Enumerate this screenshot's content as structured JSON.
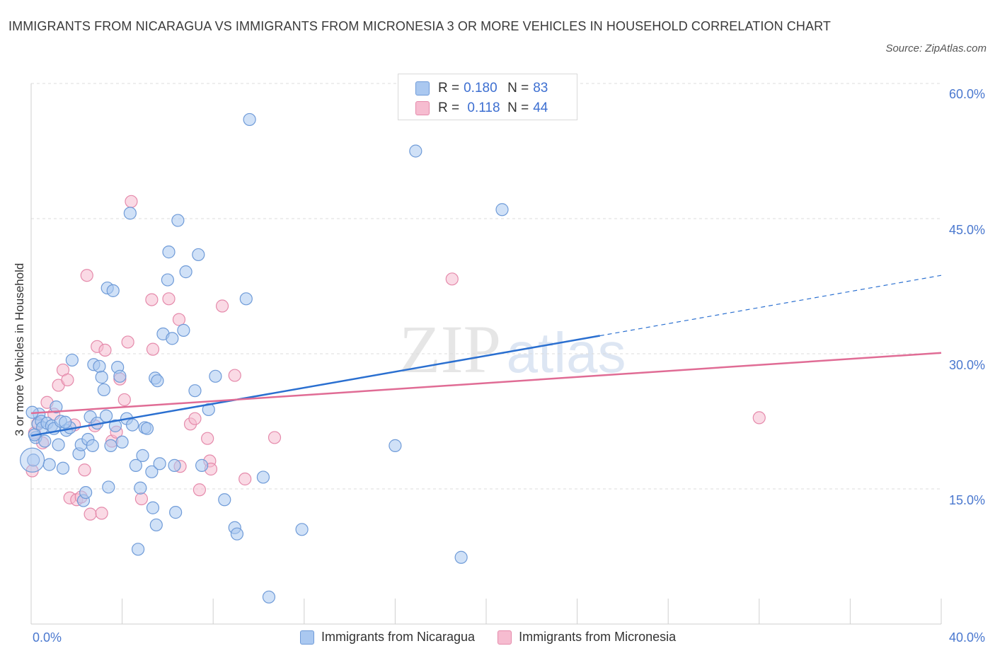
{
  "title": "IMMIGRANTS FROM NICARAGUA VS IMMIGRANTS FROM MICRONESIA 3 OR MORE VEHICLES IN HOUSEHOLD CORRELATION CHART",
  "source": "Source: ZipAtlas.com",
  "watermark": {
    "zip": "ZIP",
    "atlas": "atlas"
  },
  "colors": {
    "blue_fill": "#aac8f0",
    "blue_stroke": "#6f9bd8",
    "blue_line": "#2a6fd0",
    "pink_fill": "#f6bcd0",
    "pink_stroke": "#e58aab",
    "pink_line": "#e06c95",
    "tick_text": "#4a78cf",
    "grid": "#dcdcdc"
  },
  "legend_top": {
    "rows": [
      {
        "r_key": "R = ",
        "r_val": "0.180",
        "n_key": "N = ",
        "n_val": "83"
      },
      {
        "r_key": "R = ",
        "r_val": " 0.118",
        "n_key": "N = ",
        "n_val": "44"
      }
    ]
  },
  "legend_bottom": [
    "Immigrants from Nicaragua",
    "Immigrants from Micronesia"
  ],
  "axis": {
    "ylabel": "3 or more Vehicles in Household",
    "x_left_label": "0.0%",
    "x_right_label": "40.0%",
    "y_ticks": [
      "15.0%",
      "30.0%",
      "45.0%",
      "60.0%"
    ]
  },
  "chart_data": {
    "type": "scatter",
    "title": "IMMIGRANTS FROM NICARAGUA VS IMMIGRANTS FROM MICRONESIA 3 OR MORE VEHICLES IN HOUSEHOLD CORRELATION CHART",
    "xlabel": "",
    "ylabel": "3 or more Vehicles in Household",
    "xlim": [
      0,
      40
    ],
    "ylim": [
      0,
      60
    ],
    "y_ticks": [
      15,
      30,
      45,
      60
    ],
    "grid": true,
    "legend": "top-center",
    "series": [
      {
        "name": "Immigrants from Nicaragua",
        "R": 0.18,
        "N": 83,
        "trend": {
          "x": [
            0,
            25
          ],
          "y": [
            20.9,
            32.0
          ],
          "dashed_to": {
            "x": 40,
            "y": 38.7
          }
        },
        "points": [
          [
            0.1,
            18.2
          ],
          [
            0.2,
            20.7
          ],
          [
            0.3,
            22.2
          ],
          [
            0.35,
            23.3
          ],
          [
            0.45,
            22.5
          ],
          [
            0.5,
            21.8
          ],
          [
            0.6,
            20.3
          ],
          [
            0.7,
            22.3
          ],
          [
            0.8,
            17.7
          ],
          [
            0.9,
            22.0
          ],
          [
            1.0,
            21.7
          ],
          [
            1.1,
            24.1
          ],
          [
            1.2,
            19.9
          ],
          [
            1.3,
            22.5
          ],
          [
            1.4,
            17.3
          ],
          [
            1.55,
            21.5
          ],
          [
            1.7,
            21.8
          ],
          [
            1.8,
            29.3
          ],
          [
            2.1,
            18.9
          ],
          [
            2.2,
            19.9
          ],
          [
            2.3,
            13.7
          ],
          [
            2.4,
            14.6
          ],
          [
            2.5,
            20.5
          ],
          [
            2.6,
            23.0
          ],
          [
            2.7,
            19.8
          ],
          [
            2.75,
            28.8
          ],
          [
            2.9,
            22.3
          ],
          [
            3.0,
            28.6
          ],
          [
            3.1,
            27.4
          ],
          [
            3.2,
            26.0
          ],
          [
            3.3,
            23.1
          ],
          [
            3.35,
            37.3
          ],
          [
            3.4,
            15.2
          ],
          [
            3.5,
            19.8
          ],
          [
            3.6,
            37.0
          ],
          [
            3.7,
            22.0
          ],
          [
            3.8,
            28.5
          ],
          [
            3.9,
            27.5
          ],
          [
            4.0,
            20.2
          ],
          [
            4.2,
            22.8
          ],
          [
            4.35,
            45.6
          ],
          [
            4.45,
            22.1
          ],
          [
            4.6,
            17.6
          ],
          [
            4.7,
            8.3
          ],
          [
            4.8,
            15.1
          ],
          [
            4.9,
            18.7
          ],
          [
            5.0,
            21.8
          ],
          [
            5.1,
            21.7
          ],
          [
            5.3,
            16.9
          ],
          [
            5.35,
            12.9
          ],
          [
            5.45,
            27.3
          ],
          [
            5.5,
            11.0
          ],
          [
            5.55,
            27.0
          ],
          [
            5.65,
            17.8
          ],
          [
            5.8,
            32.2
          ],
          [
            6.0,
            38.2
          ],
          [
            6.05,
            41.3
          ],
          [
            6.2,
            31.7
          ],
          [
            6.3,
            17.6
          ],
          [
            6.35,
            12.4
          ],
          [
            6.45,
            44.8
          ],
          [
            6.7,
            32.6
          ],
          [
            6.8,
            39.1
          ],
          [
            7.2,
            25.9
          ],
          [
            7.35,
            41.0
          ],
          [
            7.5,
            17.6
          ],
          [
            7.8,
            23.8
          ],
          [
            8.1,
            27.5
          ],
          [
            8.5,
            13.8
          ],
          [
            8.95,
            10.7
          ],
          [
            9.05,
            10.0
          ],
          [
            9.45,
            36.1
          ],
          [
            9.6,
            56.0
          ],
          [
            10.2,
            16.3
          ],
          [
            10.45,
            3.0
          ],
          [
            11.9,
            10.5
          ],
          [
            16.0,
            19.8
          ],
          [
            16.9,
            52.5
          ],
          [
            18.9,
            7.4
          ],
          [
            20.7,
            46.0
          ],
          [
            0.05,
            23.5
          ],
          [
            0.15,
            21.0
          ],
          [
            1.5,
            22.4
          ]
        ]
      },
      {
        "name": "Immigrants from Micronesia",
        "R": 0.118,
        "N": 44,
        "trend": {
          "x": [
            0,
            40
          ],
          "y": [
            23.4,
            30.1
          ]
        },
        "points": [
          [
            0.05,
            17.0
          ],
          [
            0.15,
            21.2
          ],
          [
            0.3,
            22.3
          ],
          [
            0.5,
            20.1
          ],
          [
            0.7,
            24.6
          ],
          [
            1.0,
            23.3
          ],
          [
            1.2,
            26.5
          ],
          [
            1.4,
            28.2
          ],
          [
            1.6,
            27.1
          ],
          [
            1.7,
            14.0
          ],
          [
            1.9,
            22.1
          ],
          [
            2.0,
            13.8
          ],
          [
            2.2,
            14.1
          ],
          [
            2.35,
            17.1
          ],
          [
            2.45,
            38.7
          ],
          [
            2.6,
            12.2
          ],
          [
            2.8,
            22.0
          ],
          [
            2.9,
            30.8
          ],
          [
            3.1,
            12.3
          ],
          [
            3.25,
            30.4
          ],
          [
            3.55,
            20.3
          ],
          [
            3.75,
            21.3
          ],
          [
            3.9,
            27.2
          ],
          [
            4.1,
            24.9
          ],
          [
            4.25,
            31.3
          ],
          [
            4.4,
            46.9
          ],
          [
            4.85,
            13.9
          ],
          [
            5.3,
            36.0
          ],
          [
            5.35,
            30.5
          ],
          [
            6.05,
            36.1
          ],
          [
            6.5,
            33.8
          ],
          [
            6.55,
            17.5
          ],
          [
            7.0,
            22.2
          ],
          [
            7.2,
            22.8
          ],
          [
            7.4,
            14.9
          ],
          [
            7.75,
            20.6
          ],
          [
            7.85,
            18.1
          ],
          [
            7.9,
            17.2
          ],
          [
            8.4,
            35.3
          ],
          [
            8.95,
            27.6
          ],
          [
            9.4,
            16.1
          ],
          [
            10.7,
            20.7
          ],
          [
            18.5,
            38.3
          ],
          [
            32.0,
            22.9
          ]
        ]
      }
    ]
  }
}
